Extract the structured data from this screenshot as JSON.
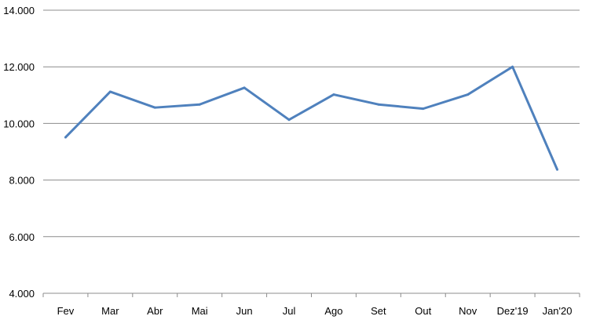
{
  "chart_data": {
    "type": "line",
    "title": "",
    "xlabel": "",
    "ylabel": "",
    "categories": [
      "Fev",
      "Mar",
      "Abr",
      "Mai",
      "Jun",
      "Jul",
      "Ago",
      "Set",
      "Out",
      "Nov",
      "Dez'19",
      "Jan'20"
    ],
    "series": [
      {
        "values": [
          9510,
          11120,
          10560,
          10670,
          11260,
          10130,
          11020,
          10670,
          10520,
          11020,
          12000,
          8370
        ],
        "color": "#4F81BD"
      }
    ],
    "ylim": [
      4000,
      14000
    ],
    "yticks": [
      4000,
      6000,
      8000,
      10000,
      12000,
      14000
    ],
    "ytick_labels": [
      "4.000",
      "6.000",
      "8.000",
      "10.000",
      "12.000",
      "14.000"
    ],
    "grid": "horizontal",
    "legend": "none"
  }
}
